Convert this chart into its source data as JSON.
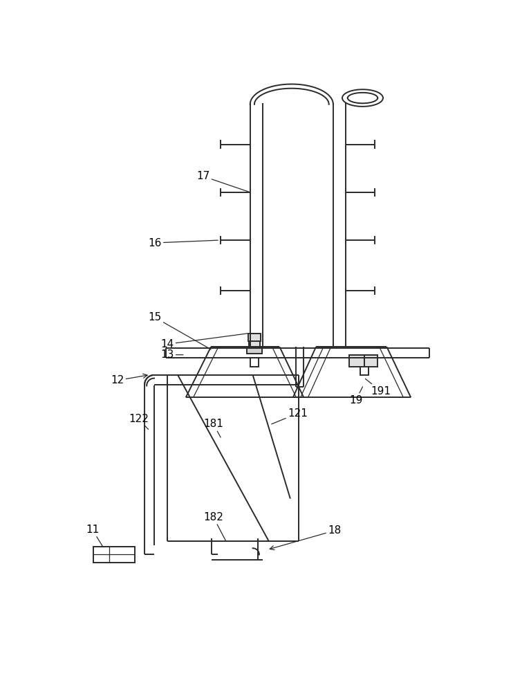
{
  "bg_color": "#ffffff",
  "line_color": "#2a2a2a",
  "lw": 1.4,
  "thin_lw": 0.9,
  "fontsize": 11
}
